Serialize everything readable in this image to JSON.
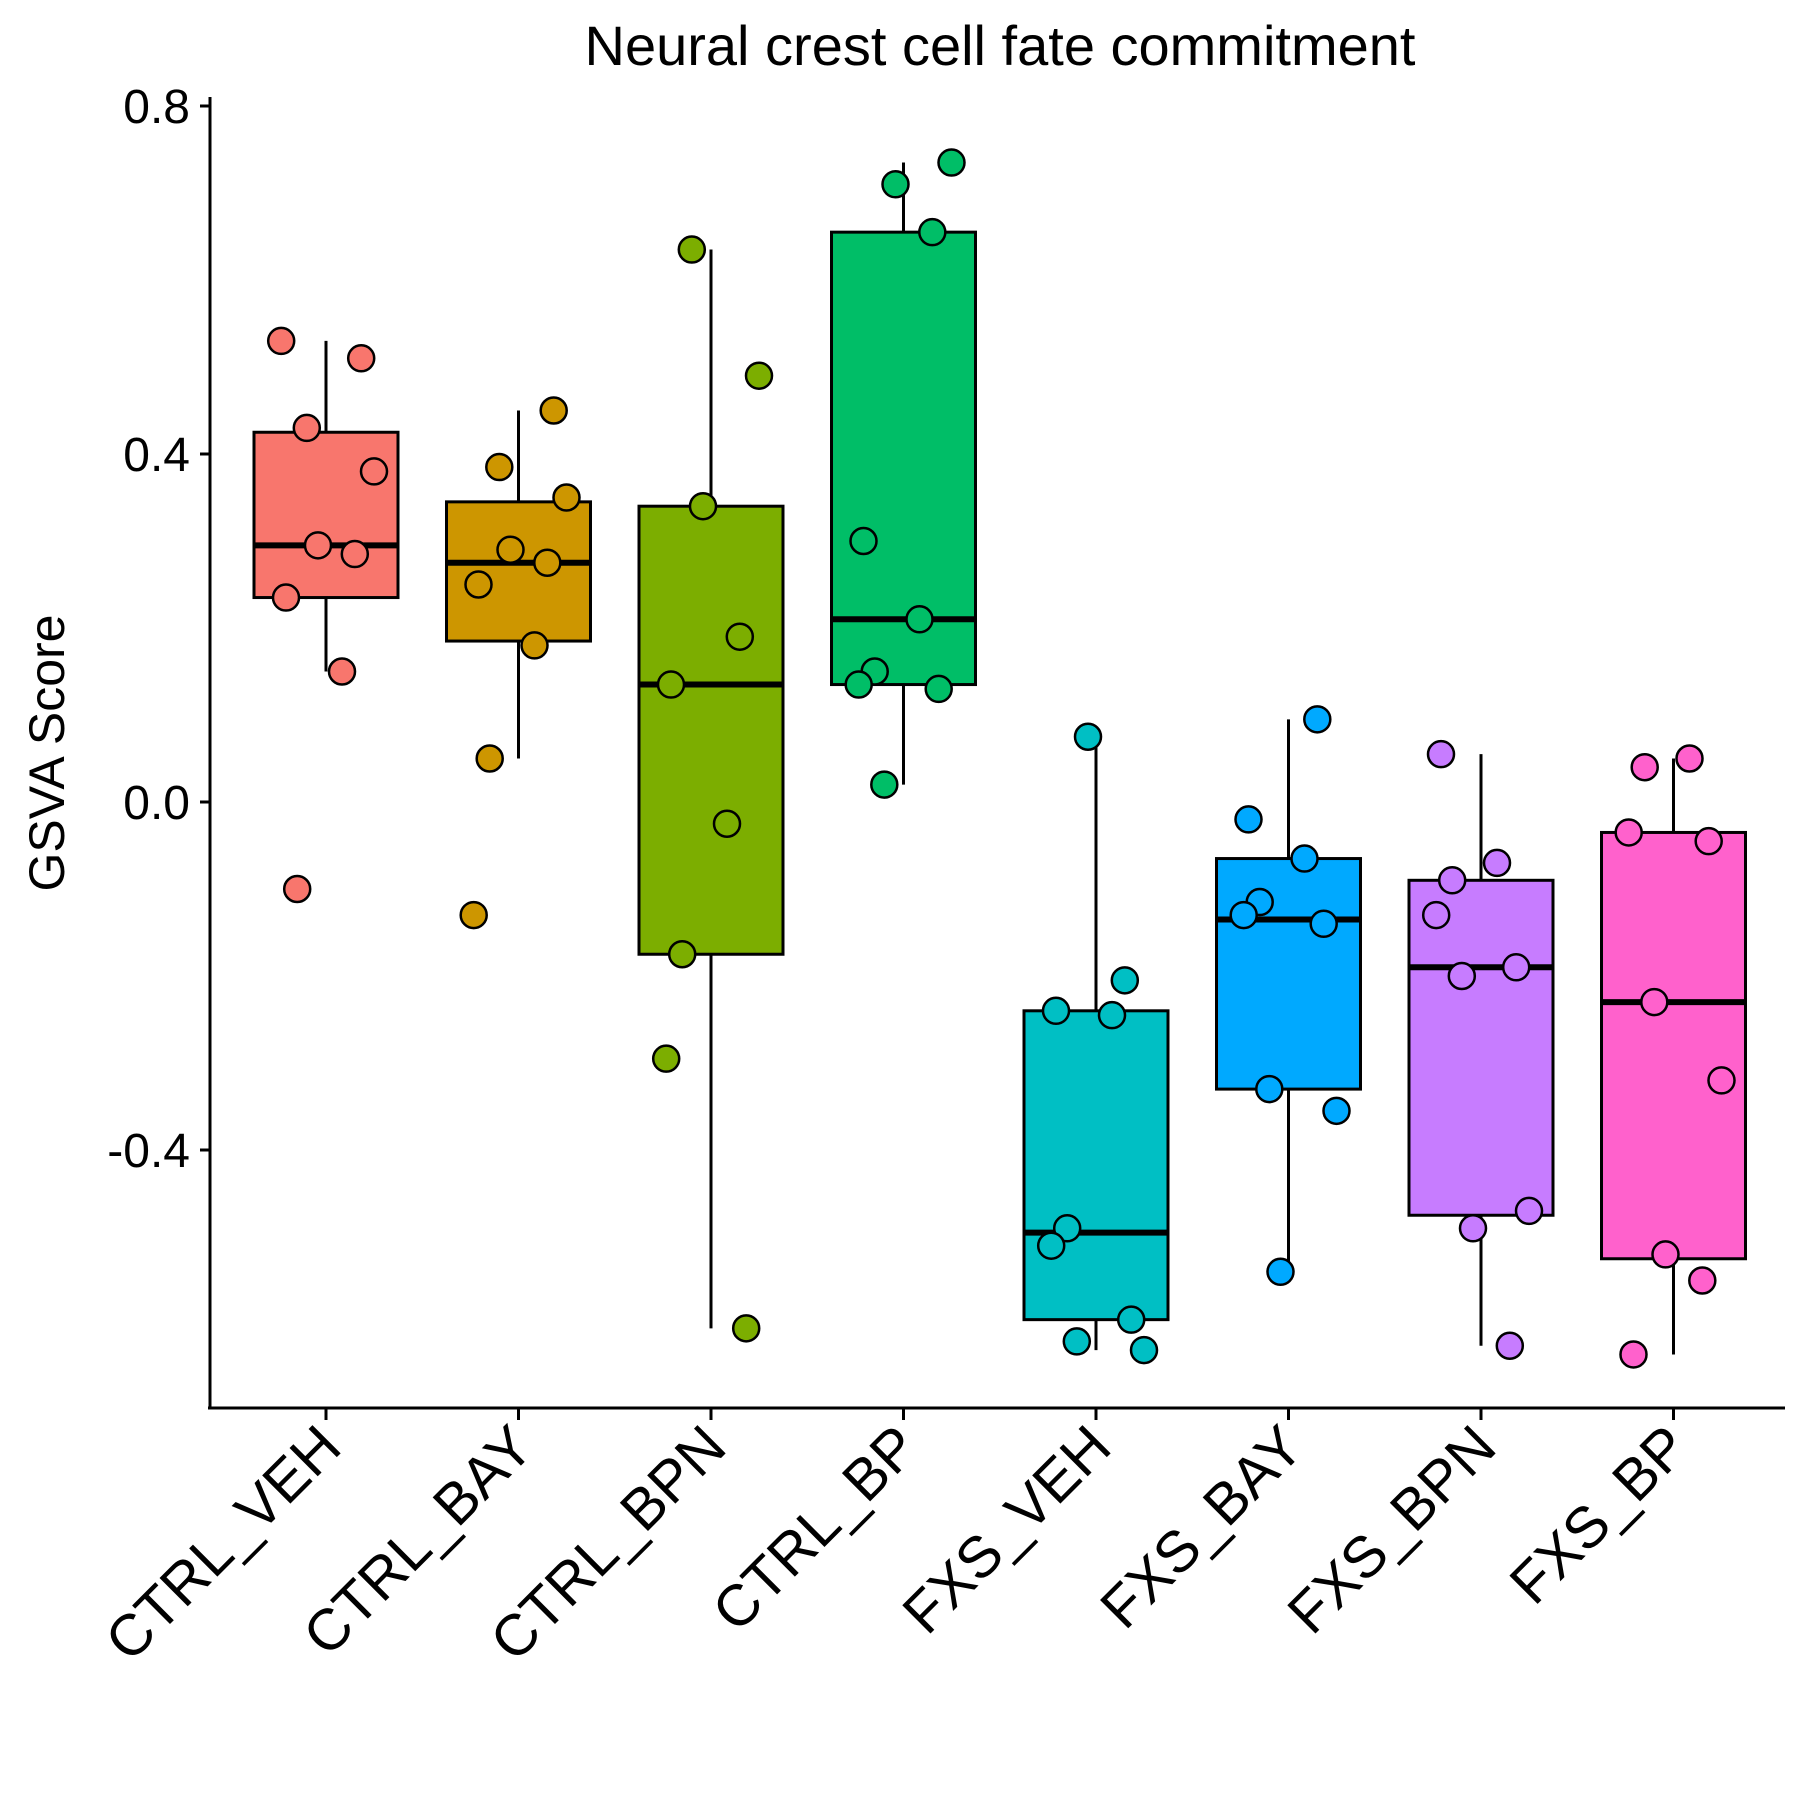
{
  "chart_data": {
    "type": "box",
    "title": "Neural crest cell fate commitment",
    "xlabel": "",
    "ylabel": "GSVA Score",
    "ylim": [
      -0.7,
      0.8
    ],
    "yticks": [
      "-0.4",
      "0.0",
      "0.4",
      "0.8"
    ],
    "grid": false,
    "legend": "none",
    "categories": [
      "CTRL_VEH",
      "CTRL_BAY",
      "CTRL_BPN",
      "CTRL_BP",
      "FXS_VEH",
      "FXS_BAY",
      "FXS_BPN",
      "FXS_BP"
    ],
    "groups": [
      {
        "name": "CTRL_VEH",
        "color": "#F8766D",
        "q1": 0.235,
        "median": 0.295,
        "q3": 0.425,
        "whisker_low": 0.15,
        "whisker_high": 0.53,
        "points": [
          0.53,
          0.51,
          0.43,
          0.38,
          0.295,
          0.285,
          0.235,
          0.15,
          -0.1
        ]
      },
      {
        "name": "CTRL_BAY",
        "color": "#CD9600",
        "q1": 0.185,
        "median": 0.275,
        "q3": 0.345,
        "whisker_low": 0.05,
        "whisker_high": 0.45,
        "points": [
          0.45,
          0.385,
          0.35,
          0.29,
          0.275,
          0.25,
          0.18,
          0.05,
          -0.13
        ]
      },
      {
        "name": "CTRL_BPN",
        "color": "#7CAE00",
        "q1": -0.175,
        "median": 0.135,
        "q3": 0.34,
        "whisker_low": -0.605,
        "whisker_high": 0.635,
        "points": [
          0.635,
          0.49,
          0.34,
          0.19,
          0.135,
          -0.025,
          -0.175,
          -0.295,
          -0.605
        ]
      },
      {
        "name": "CTRL_BP",
        "color": "#00BE67",
        "q1": 0.135,
        "median": 0.21,
        "q3": 0.655,
        "whisker_low": 0.02,
        "whisker_high": 0.735,
        "points": [
          0.735,
          0.71,
          0.655,
          0.3,
          0.21,
          0.15,
          0.135,
          0.13,
          0.02
        ]
      },
      {
        "name": "FXS_VEH",
        "color": "#00BFC4",
        "q1": -0.595,
        "median": -0.495,
        "q3": -0.24,
        "whisker_low": -0.63,
        "whisker_high": 0.075,
        "points": [
          0.075,
          -0.205,
          -0.24,
          -0.245,
          -0.49,
          -0.51,
          -0.595,
          -0.62,
          -0.63
        ]
      },
      {
        "name": "FXS_BAY",
        "color": "#00A9FF",
        "q1": -0.33,
        "median": -0.135,
        "q3": -0.065,
        "whisker_low": -0.54,
        "whisker_high": 0.095,
        "points": [
          0.095,
          -0.02,
          -0.065,
          -0.115,
          -0.13,
          -0.14,
          -0.33,
          -0.355,
          -0.54
        ]
      },
      {
        "name": "FXS_BPN",
        "color": "#C77CFF",
        "q1": -0.475,
        "median": -0.19,
        "q3": -0.09,
        "whisker_low": -0.625,
        "whisker_high": 0.055,
        "points": [
          0.055,
          -0.07,
          -0.09,
          -0.13,
          -0.19,
          -0.2,
          -0.47,
          -0.49,
          -0.625
        ]
      },
      {
        "name": "FXS_BP",
        "color": "#FF61CC",
        "q1": -0.525,
        "median": -0.23,
        "q3": -0.035,
        "whisker_low": -0.635,
        "whisker_high": 0.05,
        "points": [
          0.05,
          0.04,
          -0.035,
          -0.045,
          -0.23,
          -0.32,
          -0.52,
          -0.55,
          -0.635
        ]
      }
    ]
  }
}
